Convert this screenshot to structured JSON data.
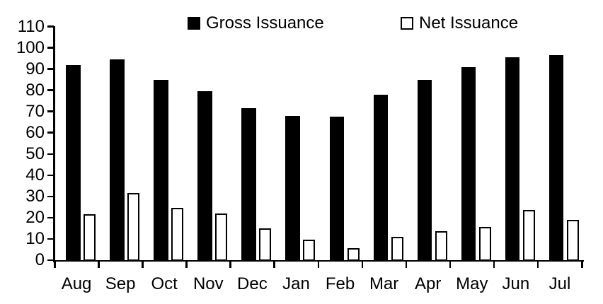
{
  "chart_data": {
    "type": "bar",
    "title": "",
    "xlabel": "",
    "ylabel": "",
    "categories": [
      "Aug",
      "Sep",
      "Oct",
      "Nov",
      "Dec",
      "Jan",
      "Feb",
      "Mar",
      "Apr",
      "May",
      "Jun",
      "Jul"
    ],
    "series": [
      {
        "name": "Gross Issuance",
        "style": "filled",
        "color": "#000000",
        "values": [
          92,
          94.5,
          85,
          79.5,
          71.5,
          68,
          67.5,
          78,
          85,
          91,
          95.5,
          96.5
        ]
      },
      {
        "name": "Net Issuance",
        "style": "outlined",
        "fill": "#ffffff",
        "border": "#000000",
        "values": [
          21.5,
          31.5,
          24.5,
          22,
          15,
          9.5,
          5.5,
          11,
          13.5,
          15.5,
          23.5,
          19
        ]
      }
    ],
    "ylim": [
      0,
      110
    ],
    "yticks": [
      0,
      10,
      20,
      30,
      40,
      50,
      60,
      70,
      80,
      90,
      100,
      110
    ],
    "ytick_labels": [
      "0",
      "10",
      "20",
      "30",
      "40",
      "50",
      "60",
      "70",
      "80",
      "90",
      "100",
      "110"
    ],
    "grid": false,
    "legend_position": "top"
  },
  "legend": {
    "items": [
      {
        "label": "Gross Issuance",
        "swatch": "filled-black-square"
      },
      {
        "label": "Net Issuance",
        "swatch": "outlined-white-square"
      }
    ]
  },
  "colors": {
    "background": "#ffffff",
    "axis": "#000000",
    "text": "#000000",
    "gross_bar": "#000000",
    "net_bar_fill": "#ffffff",
    "net_bar_border": "#000000"
  }
}
